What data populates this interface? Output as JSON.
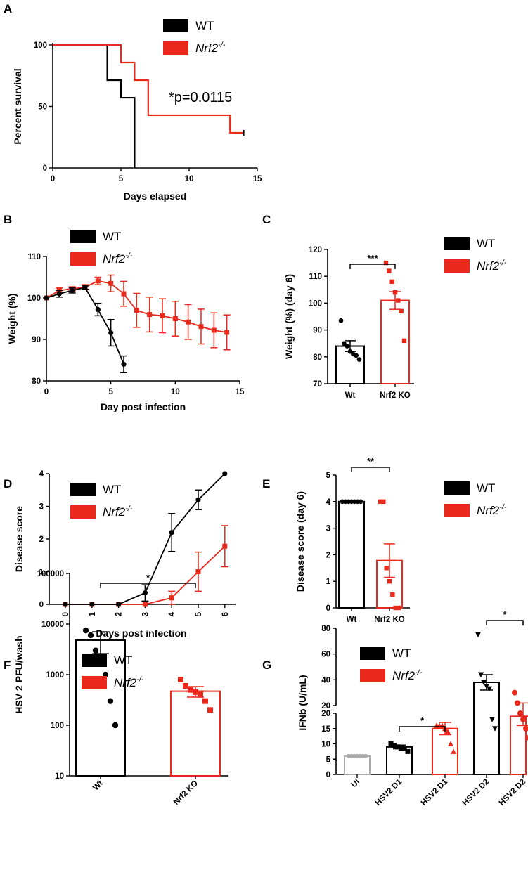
{
  "legend": {
    "wt": "WT",
    "ko": "Nrf2",
    "ko_sup": "-/-"
  },
  "colors": {
    "wt": "#000000",
    "ko": "#e8291c",
    "ui": "#aaaaaa"
  },
  "chart_data": [
    {
      "panel": "A",
      "type": "line",
      "subtype": "survival (Kaplan-Meier)",
      "xlabel": "Days elapsed",
      "ylabel": "Percent survival",
      "xlim": [
        0,
        15
      ],
      "ylim": [
        0,
        100
      ],
      "xticks": [
        "0",
        "5",
        "10",
        "15"
      ],
      "yticks": [
        "0",
        "50",
        "100"
      ],
      "annotation": "*p=0.0115",
      "series": [
        {
          "name": "WT",
          "steps": [
            [
              0,
              100
            ],
            [
              4,
              100
            ],
            [
              4,
              71.4
            ],
            [
              5,
              71.4
            ],
            [
              5,
              57.1
            ],
            [
              6,
              57.1
            ],
            [
              6,
              0
            ]
          ]
        },
        {
          "name": "Nrf2-/-",
          "steps": [
            [
              0,
              100
            ],
            [
              5,
              100
            ],
            [
              5,
              85.7
            ],
            [
              6,
              85.7
            ],
            [
              6,
              71.4
            ],
            [
              7,
              71.4
            ],
            [
              7,
              42.9
            ],
            [
              13,
              42.9
            ],
            [
              13,
              28.6
            ],
            [
              14,
              28.6
            ]
          ]
        }
      ]
    },
    {
      "panel": "B",
      "type": "line",
      "xlabel": "Day post infection",
      "ylabel": "Weight (%)",
      "xlim": [
        0,
        15
      ],
      "ylim": [
        80,
        110
      ],
      "xticks": [
        "0",
        "5",
        "10",
        "15"
      ],
      "yticks": [
        "80",
        "90",
        "100",
        "110"
      ],
      "series": [
        {
          "name": "WT",
          "x": [
            0,
            1,
            2,
            3,
            4,
            5,
            6
          ],
          "y": [
            100,
            101,
            101.8,
            102.5,
            97.2,
            91.6,
            84
          ],
          "err": [
            0,
            0.8,
            0.6,
            0.4,
            1.5,
            3.2,
            2
          ]
        },
        {
          "name": "Nrf2-/-",
          "x": [
            0,
            1,
            2,
            3,
            4,
            5,
            6,
            7,
            8,
            9,
            10,
            11,
            12,
            13,
            14
          ],
          "y": [
            100,
            101.8,
            102.2,
            102.6,
            104.1,
            103.5,
            101,
            97,
            96,
            95.7,
            95,
            94.2,
            93.1,
            92.2,
            91.7
          ],
          "err": [
            0,
            0.6,
            0.5,
            0.6,
            0.9,
            2,
            3,
            4.1,
            4.2,
            4.1,
            4.2,
            4.2,
            4.2,
            4.2,
            4.2
          ]
        }
      ]
    },
    {
      "panel": "C",
      "type": "bar",
      "ylabel": "Weight (%) (day 6)",
      "ylim": [
        70,
        120
      ],
      "yticks": [
        "70",
        "80",
        "90",
        "100",
        "110",
        "120"
      ],
      "categories": [
        "Wt",
        "Nrf2 KO"
      ],
      "values": [
        84,
        101
      ],
      "err": [
        2,
        3.3
      ],
      "points": [
        [
          93.5,
          85,
          84,
          82,
          81,
          80.5,
          79
        ],
        [
          115,
          112,
          108,
          104,
          101,
          97,
          86
        ]
      ],
      "significance": "***"
    },
    {
      "panel": "D",
      "type": "line",
      "xlabel": "Days post infection",
      "ylabel": "Disease score",
      "ylim": [
        0,
        4
      ],
      "xticks": [
        "0",
        "1",
        "2",
        "3",
        "4",
        "5",
        "6"
      ],
      "yticks": [
        "0",
        "1",
        "2",
        "3",
        "4"
      ],
      "series": [
        {
          "name": "WT",
          "x": [
            0,
            1,
            2,
            3,
            4,
            5,
            6
          ],
          "y": [
            0,
            0,
            0,
            0.35,
            2.2,
            3.2,
            4
          ],
          "err": [
            0,
            0,
            0,
            0.25,
            0.58,
            0.3,
            0
          ]
        },
        {
          "name": "Nrf2-/-",
          "x": [
            0,
            1,
            2,
            3,
            4,
            5,
            6
          ],
          "y": [
            0,
            0,
            0,
            0,
            0.2,
            1,
            1.78
          ],
          "err": [
            0,
            0,
            0,
            0,
            0.2,
            0.6,
            0.63
          ]
        }
      ]
    },
    {
      "panel": "E",
      "type": "bar",
      "ylabel": "Disease score (day 6)",
      "ylim": [
        0,
        5
      ],
      "yticks": [
        "0",
        "1",
        "2",
        "3",
        "4",
        "5"
      ],
      "categories": [
        "Wt",
        "Nrf2 KO"
      ],
      "values": [
        4,
        1.78
      ],
      "err": [
        0,
        0.63
      ],
      "points": [
        [
          4,
          4,
          4,
          4,
          4,
          4,
          4
        ],
        [
          4,
          4,
          1.5,
          1,
          0.5,
          0,
          0
        ]
      ],
      "significance": "**"
    },
    {
      "panel": "F",
      "type": "bar",
      "yscale": "log",
      "ylabel": "HSV 2 PFU/wash",
      "ylim": [
        10,
        100000
      ],
      "yticks": [
        "10",
        "100",
        "1000",
        "10000",
        "100000"
      ],
      "categories": [
        "Wt",
        "Nrf2 KO"
      ],
      "values": [
        4800,
        470
      ],
      "err_low": [
        2600,
        360
      ],
      "err_high": [
        7000,
        580
      ],
      "points": [
        [
          7500,
          6000,
          3000,
          2000,
          1000,
          300,
          100
        ],
        [
          800,
          600,
          500,
          450,
          400,
          300,
          200
        ]
      ],
      "significance": "*"
    },
    {
      "panel": "G",
      "type": "bar",
      "yscale": "broken",
      "ylabel": "IFNb (U/mL)",
      "lower_range": [
        0,
        20
      ],
      "upper_range": [
        20,
        80
      ],
      "yticks_lower": [
        "0",
        "5",
        "10",
        "15",
        "20"
      ],
      "yticks_upper": [
        "20",
        "40",
        "60",
        "80"
      ],
      "categories": [
        "Ui",
        "HSV2 D1",
        "HSV2 D1",
        "HSV2 D2",
        "HSV2 D2"
      ],
      "groups": [
        "Ui",
        "WT",
        "Nrf2-/-",
        "WT",
        "Nrf2-/-"
      ],
      "values": [
        6,
        9,
        15,
        38,
        19
      ],
      "err": [
        0.2,
        0.6,
        2,
        6,
        3
      ],
      "points": [
        [
          6,
          6,
          6,
          6,
          6,
          6,
          6
        ],
        [
          10,
          9.5,
          9,
          8.6,
          8.4,
          7.5
        ],
        [
          16,
          16,
          16,
          15,
          14,
          10,
          7.5
        ],
        [
          75,
          44,
          38,
          35,
          33,
          18,
          15
        ],
        [
          30,
          22,
          20,
          18,
          15,
          12,
          8
        ]
      ],
      "significance": [
        "*",
        "*"
      ]
    }
  ]
}
